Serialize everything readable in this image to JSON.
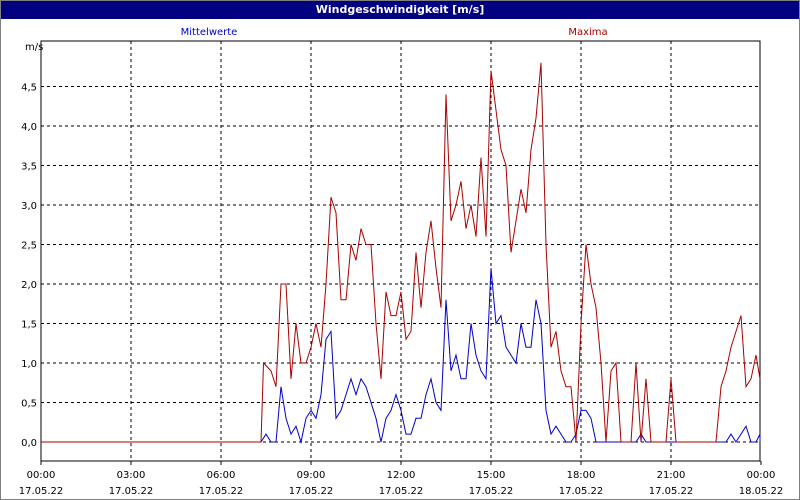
{
  "window": {
    "title": "Windgeschwindigkeit [m/s]"
  },
  "colors": {
    "title_bar": "#000080",
    "mittelwerte": "#0000cc",
    "maxima": "#aa0000",
    "grid": "#000000"
  },
  "chart_data": {
    "type": "line",
    "title": "Windgeschwindigkeit [m/s]",
    "ylabel": "m/s",
    "xlabel": "",
    "grid": true,
    "legend_placement": "top",
    "ylim": [
      0,
      5.0
    ],
    "xlim_hours": [
      0,
      24
    ],
    "y_ticks": [
      "0,0",
      "0,5",
      "1,0",
      "1,5",
      "2,0",
      "2,5",
      "3,0",
      "3,5",
      "4,0",
      "4,5"
    ],
    "x_ticks": [
      {
        "time": "00:00",
        "date": "17.05.22"
      },
      {
        "time": "03:00",
        "date": "17.05.22"
      },
      {
        "time": "06:00",
        "date": "17.05.22"
      },
      {
        "time": "09:00",
        "date": "17.05.22"
      },
      {
        "time": "12:00",
        "date": "17.05.22"
      },
      {
        "time": "15:00",
        "date": "17.05.22"
      },
      {
        "time": "18:00",
        "date": "17.05.22"
      },
      {
        "time": "21:00",
        "date": "17.05.22"
      },
      {
        "time": "00:00",
        "date": "18.05.22"
      }
    ],
    "series": [
      {
        "name": "Mittelwerte",
        "color": "#0000cc",
        "points": [
          [
            "00:00",
            0
          ],
          [
            "07:20",
            0
          ],
          [
            "07:30",
            0.1
          ],
          [
            "07:40",
            0
          ],
          [
            "07:50",
            0
          ],
          [
            "08:00",
            0.7
          ],
          [
            "08:10",
            0.3
          ],
          [
            "08:20",
            0.1
          ],
          [
            "08:30",
            0.2
          ],
          [
            "08:40",
            0
          ],
          [
            "08:50",
            0.3
          ],
          [
            "09:00",
            0.4
          ],
          [
            "09:10",
            0.3
          ],
          [
            "09:20",
            0.6
          ],
          [
            "09:30",
            1.3
          ],
          [
            "09:40",
            1.4
          ],
          [
            "09:50",
            0.3
          ],
          [
            "10:00",
            0.4
          ],
          [
            "10:10",
            0.6
          ],
          [
            "10:20",
            0.8
          ],
          [
            "10:30",
            0.6
          ],
          [
            "10:40",
            0.8
          ],
          [
            "10:50",
            0.7
          ],
          [
            "11:00",
            0.5
          ],
          [
            "11:10",
            0.3
          ],
          [
            "11:20",
            0
          ],
          [
            "11:30",
            0.3
          ],
          [
            "11:40",
            0.4
          ],
          [
            "11:50",
            0.6
          ],
          [
            "12:00",
            0.4
          ],
          [
            "12:10",
            0.1
          ],
          [
            "12:20",
            0.1
          ],
          [
            "12:30",
            0.3
          ],
          [
            "12:40",
            0.3
          ],
          [
            "12:50",
            0.6
          ],
          [
            "13:00",
            0.8
          ],
          [
            "13:10",
            0.5
          ],
          [
            "13:20",
            0.4
          ],
          [
            "13:30",
            1.8
          ],
          [
            "13:40",
            0.9
          ],
          [
            "13:50",
            1.1
          ],
          [
            "14:00",
            0.8
          ],
          [
            "14:10",
            0.8
          ],
          [
            "14:20",
            1.5
          ],
          [
            "14:30",
            1.1
          ],
          [
            "14:40",
            0.9
          ],
          [
            "14:50",
            0.8
          ],
          [
            "15:00",
            2.2
          ],
          [
            "15:10",
            1.5
          ],
          [
            "15:20",
            1.6
          ],
          [
            "15:30",
            1.2
          ],
          [
            "15:40",
            1.1
          ],
          [
            "15:50",
            1.0
          ],
          [
            "16:00",
            1.5
          ],
          [
            "16:10",
            1.2
          ],
          [
            "16:20",
            1.2
          ],
          [
            "16:30",
            1.8
          ],
          [
            "16:40",
            1.5
          ],
          [
            "16:50",
            0.4
          ],
          [
            "17:00",
            0.1
          ],
          [
            "17:10",
            0.2
          ],
          [
            "17:20",
            0.1
          ],
          [
            "17:30",
            0
          ],
          [
            "17:40",
            0
          ],
          [
            "17:50",
            0.1
          ],
          [
            "18:00",
            0.4
          ],
          [
            "18:10",
            0.4
          ],
          [
            "18:20",
            0.3
          ],
          [
            "18:30",
            0
          ],
          [
            "18:40",
            0
          ],
          [
            "18:50",
            0
          ],
          [
            "19:00",
            0
          ],
          [
            "19:10",
            0
          ],
          [
            "19:20",
            0
          ],
          [
            "19:30",
            0
          ],
          [
            "19:40",
            0
          ],
          [
            "19:50",
            0
          ],
          [
            "20:00",
            0.1
          ],
          [
            "20:10",
            0
          ],
          [
            "20:20",
            0
          ],
          [
            "22:50",
            0
          ],
          [
            "23:00",
            0.1
          ],
          [
            "23:10",
            0
          ],
          [
            "23:20",
            0.1
          ],
          [
            "23:30",
            0.2
          ],
          [
            "23:40",
            0
          ],
          [
            "23:50",
            0
          ],
          [
            "24:00",
            0.1
          ],
          [
            "24:10",
            0
          ]
        ]
      },
      {
        "name": "Maxima",
        "color": "#aa0000",
        "points": [
          [
            "00:00",
            0
          ],
          [
            "07:20",
            0
          ],
          [
            "07:25",
            1.0
          ],
          [
            "07:40",
            0.9
          ],
          [
            "07:50",
            0.7
          ],
          [
            "08:00",
            2.0
          ],
          [
            "08:10",
            2.0
          ],
          [
            "08:20",
            0.8
          ],
          [
            "08:30",
            1.5
          ],
          [
            "08:40",
            1.0
          ],
          [
            "08:50",
            1.0
          ],
          [
            "09:00",
            1.2
          ],
          [
            "09:10",
            1.5
          ],
          [
            "09:20",
            1.2
          ],
          [
            "09:30",
            2.0
          ],
          [
            "09:40",
            3.1
          ],
          [
            "09:50",
            2.9
          ],
          [
            "10:00",
            1.8
          ],
          [
            "10:10",
            1.8
          ],
          [
            "10:20",
            2.5
          ],
          [
            "10:30",
            2.3
          ],
          [
            "10:40",
            2.7
          ],
          [
            "10:50",
            2.5
          ],
          [
            "11:00",
            2.5
          ],
          [
            "11:10",
            1.5
          ],
          [
            "11:20",
            0.8
          ],
          [
            "11:30",
            1.9
          ],
          [
            "11:40",
            1.6
          ],
          [
            "11:50",
            1.6
          ],
          [
            "12:00",
            1.9
          ],
          [
            "12:10",
            1.3
          ],
          [
            "12:20",
            1.4
          ],
          [
            "12:30",
            2.4
          ],
          [
            "12:40",
            1.7
          ],
          [
            "12:50",
            2.4
          ],
          [
            "13:00",
            2.8
          ],
          [
            "13:10",
            2.2
          ],
          [
            "13:20",
            1.7
          ],
          [
            "13:30",
            4.4
          ],
          [
            "13:40",
            2.8
          ],
          [
            "13:50",
            3.0
          ],
          [
            "14:00",
            3.3
          ],
          [
            "14:10",
            2.7
          ],
          [
            "14:20",
            3.0
          ],
          [
            "14:30",
            2.6
          ],
          [
            "14:40",
            3.6
          ],
          [
            "14:50",
            2.6
          ],
          [
            "15:00",
            4.7
          ],
          [
            "15:10",
            4.2
          ],
          [
            "15:20",
            3.7
          ],
          [
            "15:30",
            3.5
          ],
          [
            "15:40",
            2.4
          ],
          [
            "15:50",
            2.8
          ],
          [
            "16:00",
            3.2
          ],
          [
            "16:10",
            2.9
          ],
          [
            "16:20",
            3.7
          ],
          [
            "16:30",
            4.1
          ],
          [
            "16:40",
            4.8
          ],
          [
            "16:50",
            2.5
          ],
          [
            "17:00",
            1.2
          ],
          [
            "17:10",
            1.4
          ],
          [
            "17:20",
            0.9
          ],
          [
            "17:30",
            0.7
          ],
          [
            "17:40",
            0.7
          ],
          [
            "17:50",
            0
          ],
          [
            "18:00",
            1.5
          ],
          [
            "18:10",
            2.5
          ],
          [
            "18:20",
            2.0
          ],
          [
            "18:30",
            1.7
          ],
          [
            "18:40",
            1.0
          ],
          [
            "18:50",
            0
          ],
          [
            "19:00",
            0.9
          ],
          [
            "19:10",
            1.0
          ],
          [
            "19:20",
            0
          ],
          [
            "19:30",
            0
          ],
          [
            "19:40",
            0
          ],
          [
            "19:50",
            1.0
          ],
          [
            "20:00",
            0
          ],
          [
            "20:10",
            0.8
          ],
          [
            "20:20",
            0
          ],
          [
            "20:30",
            0
          ],
          [
            "20:50",
            0
          ],
          [
            "21:00",
            0.8
          ],
          [
            "21:10",
            0
          ],
          [
            "22:30",
            0
          ],
          [
            "22:40",
            0.7
          ],
          [
            "22:50",
            0.9
          ],
          [
            "23:00",
            1.2
          ],
          [
            "23:10",
            1.4
          ],
          [
            "23:20",
            1.6
          ],
          [
            "23:30",
            0.7
          ],
          [
            "23:40",
            0.8
          ],
          [
            "23:50",
            1.1
          ],
          [
            "24:00",
            0.8
          ]
        ]
      }
    ]
  }
}
